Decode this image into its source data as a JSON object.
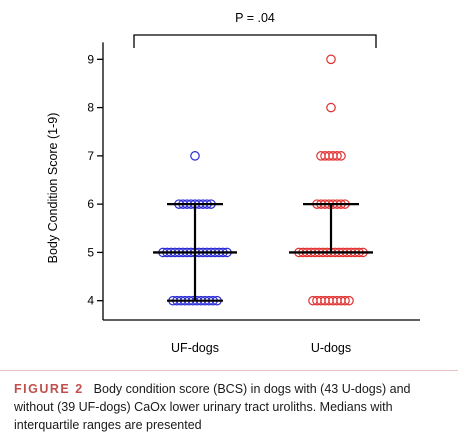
{
  "chart_data": {
    "type": "scatter",
    "ylabel": "Body Condition Score (1-9)",
    "yticks": [
      "4",
      "5",
      "6",
      "7",
      "8",
      "9"
    ],
    "ylim": [
      3.6,
      9.4
    ],
    "significance_label": "P = .04",
    "categories": [
      "UF-dogs",
      "U-dogs"
    ],
    "groups": [
      {
        "category": "UF-dogs",
        "color": "#2a2ad4",
        "counts": {
          "4": 12,
          "5": 17,
          "6": 9,
          "7": 1
        },
        "median": 5,
        "q1": 4,
        "q3": 6
      },
      {
        "category": "U-dogs",
        "color": "#e03030",
        "counts": {
          "4": 10,
          "5": 17,
          "6": 8,
          "7": 6,
          "8": 1,
          "9": 1
        },
        "median": 5,
        "q1": 5,
        "q3": 6
      }
    ]
  },
  "caption": {
    "label": "FIGURE 2",
    "text": "Body condition score (BCS) in dogs with (43 U-dogs) and without (39 UF-dogs) CaOx lower urinary tract uroliths. Medians with interquartile ranges are presented"
  }
}
